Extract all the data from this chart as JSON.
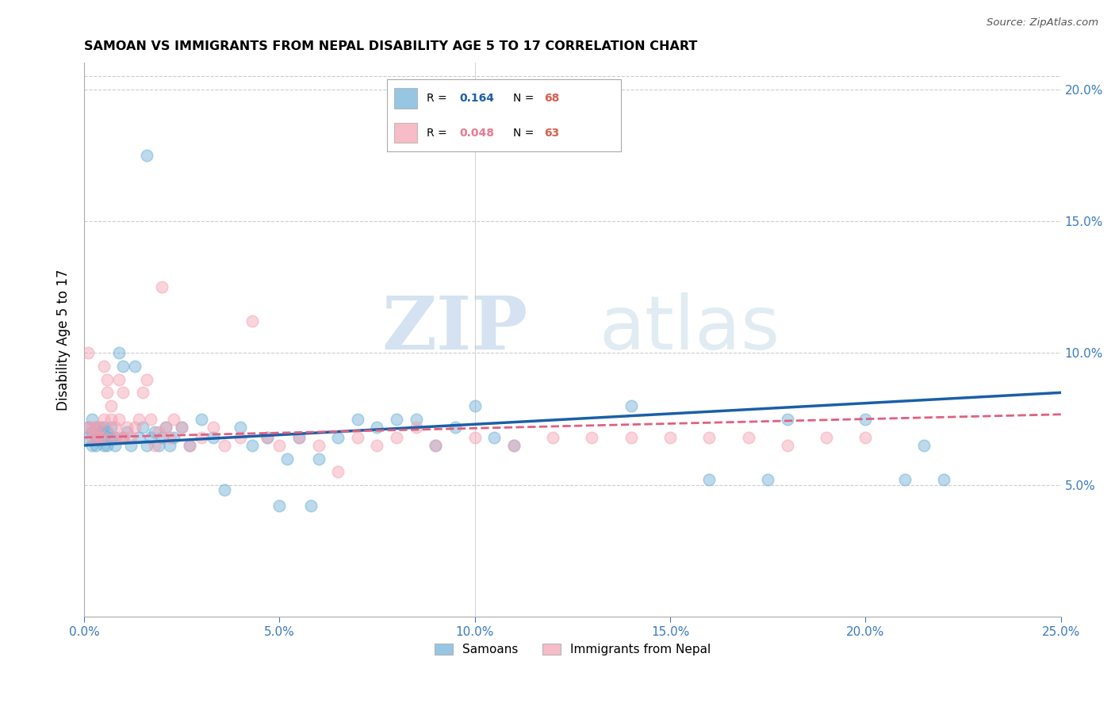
{
  "title": "SAMOAN VS IMMIGRANTS FROM NEPAL DISABILITY AGE 5 TO 17 CORRELATION CHART",
  "source": "Source: ZipAtlas.com",
  "ylabel": "Disability Age 5 to 17",
  "x_min": 0.0,
  "x_max": 0.25,
  "y_min": 0.0,
  "y_max": 0.21,
  "x_ticks": [
    0.0,
    0.05,
    0.1,
    0.15,
    0.2,
    0.25
  ],
  "x_tick_labels": [
    "0.0%",
    "",
    "",
    "",
    "",
    "25.0%"
  ],
  "y_ticks_right": [
    0.05,
    0.1,
    0.15,
    0.2
  ],
  "y_tick_labels_right": [
    "5.0%",
    "10.0%",
    "15.0%",
    "20.0%"
  ],
  "samoan_color": "#6baed6",
  "nepal_color": "#f4a0b0",
  "samoan_R": 0.164,
  "samoan_N": 68,
  "nepal_R": 0.048,
  "nepal_N": 63,
  "trendline_samoan_color": "#1a5fa8",
  "trendline_nepal_color": "#e06080",
  "watermark_zip": "ZIP",
  "watermark_atlas": "atlas",
  "samoan_x": [
    0.001,
    0.001,
    0.002,
    0.002,
    0.002,
    0.003,
    0.003,
    0.003,
    0.004,
    0.004,
    0.004,
    0.005,
    0.005,
    0.005,
    0.006,
    0.006,
    0.007,
    0.007,
    0.008,
    0.008,
    0.009,
    0.01,
    0.01,
    0.011,
    0.012,
    0.013,
    0.014,
    0.015,
    0.016,
    0.017,
    0.018,
    0.019,
    0.02,
    0.021,
    0.022,
    0.023,
    0.025,
    0.027,
    0.03,
    0.033,
    0.036,
    0.04,
    0.043,
    0.047,
    0.05,
    0.052,
    0.055,
    0.058,
    0.06,
    0.065,
    0.07,
    0.075,
    0.08,
    0.085,
    0.09,
    0.095,
    0.1,
    0.105,
    0.11,
    0.14,
    0.16,
    0.175,
    0.18,
    0.2,
    0.21,
    0.215,
    0.22,
    0.016
  ],
  "samoan_y": [
    0.068,
    0.072,
    0.065,
    0.07,
    0.075,
    0.068,
    0.072,
    0.065,
    0.07,
    0.068,
    0.072,
    0.065,
    0.068,
    0.072,
    0.065,
    0.07,
    0.068,
    0.072,
    0.065,
    0.068,
    0.1,
    0.068,
    0.095,
    0.07,
    0.065,
    0.095,
    0.068,
    0.072,
    0.065,
    0.068,
    0.07,
    0.065,
    0.068,
    0.072,
    0.065,
    0.068,
    0.072,
    0.065,
    0.075,
    0.068,
    0.048,
    0.072,
    0.065,
    0.068,
    0.042,
    0.06,
    0.068,
    0.042,
    0.06,
    0.068,
    0.075,
    0.072,
    0.075,
    0.075,
    0.065,
    0.072,
    0.08,
    0.068,
    0.065,
    0.08,
    0.052,
    0.052,
    0.075,
    0.075,
    0.052,
    0.065,
    0.052,
    0.175
  ],
  "nepal_x": [
    0.001,
    0.001,
    0.002,
    0.002,
    0.003,
    0.003,
    0.004,
    0.004,
    0.005,
    0.005,
    0.005,
    0.006,
    0.006,
    0.007,
    0.007,
    0.008,
    0.008,
    0.009,
    0.009,
    0.01,
    0.01,
    0.011,
    0.012,
    0.013,
    0.014,
    0.015,
    0.016,
    0.017,
    0.018,
    0.019,
    0.02,
    0.021,
    0.022,
    0.023,
    0.025,
    0.027,
    0.03,
    0.033,
    0.036,
    0.04,
    0.043,
    0.047,
    0.05,
    0.055,
    0.06,
    0.065,
    0.07,
    0.075,
    0.08,
    0.085,
    0.09,
    0.1,
    0.11,
    0.12,
    0.13,
    0.14,
    0.15,
    0.16,
    0.17,
    0.18,
    0.19,
    0.2,
    0.01
  ],
  "nepal_y": [
    0.1,
    0.072,
    0.068,
    0.072,
    0.068,
    0.072,
    0.068,
    0.072,
    0.068,
    0.095,
    0.075,
    0.09,
    0.085,
    0.08,
    0.075,
    0.072,
    0.068,
    0.09,
    0.075,
    0.068,
    0.085,
    0.072,
    0.068,
    0.072,
    0.075,
    0.085,
    0.09,
    0.075,
    0.065,
    0.07,
    0.125,
    0.072,
    0.068,
    0.075,
    0.072,
    0.065,
    0.068,
    0.072,
    0.065,
    0.068,
    0.112,
    0.068,
    0.065,
    0.068,
    0.065,
    0.055,
    0.068,
    0.065,
    0.068,
    0.072,
    0.065,
    0.068,
    0.065,
    0.068,
    0.068,
    0.068,
    0.068,
    0.068,
    0.068,
    0.065,
    0.068,
    0.068,
    0.068
  ]
}
